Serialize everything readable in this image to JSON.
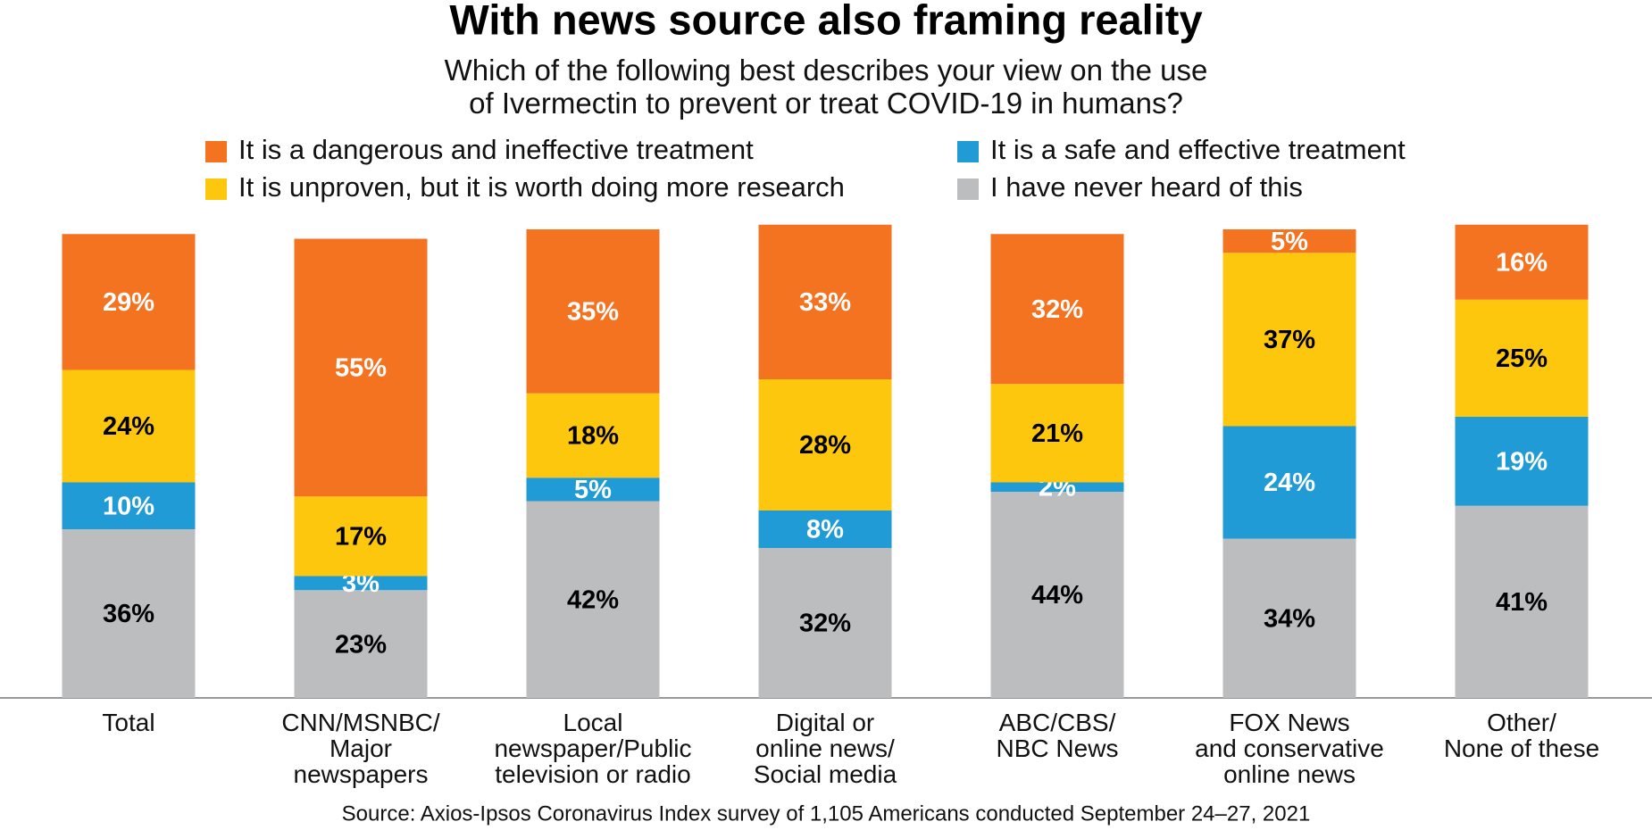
{
  "chart_data": {
    "type": "stacked_bar",
    "title": "With news source also framing reality",
    "subtitle": "Which of the following best describes your view on the use\nof Ivermectin to prevent or treat COVID-19 in humans?",
    "categories": [
      "Total",
      "CNN/MSNBC/\nMajor\nnewspapers",
      "Local\nnewspaper/Public\ntelevision or radio",
      "Digital or\nonline news/\nSocial media",
      "ABC/CBS/\nNBC News",
      "FOX News\nand conservative\nonline news",
      "Other/\nNone of these"
    ],
    "series": [
      {
        "name": "It is a dangerous and ineffective treatment",
        "color": "#f47321",
        "label_color": "#ffffff",
        "values": [
          29,
          55,
          35,
          33,
          32,
          5,
          16
        ],
        "value_labels": [
          "29%",
          "55%",
          "35%",
          "33%",
          "32%",
          "5%",
          "16%"
        ]
      },
      {
        "name": "It is unproven, but it is worth doing more research",
        "color": "#fcc70d",
        "label_color": "#000000",
        "values": [
          24,
          17,
          18,
          28,
          21,
          37,
          25
        ],
        "value_labels": [
          "24%",
          "17%",
          "18%",
          "28%",
          "21%",
          "37%",
          "25%"
        ]
      },
      {
        "name": "It is a safe and effective treatment",
        "color": "#219bd6",
        "label_color": "#ffffff",
        "values": [
          10,
          3,
          5,
          8,
          2,
          24,
          19
        ],
        "value_labels": [
          "10%",
          "3%",
          "5%",
          "8%",
          "2%",
          "24%",
          "19%"
        ]
      },
      {
        "name": "I have never heard of this",
        "color": "#bcbdbf",
        "label_color": "#000000",
        "values": [
          36,
          23,
          42,
          32,
          44,
          34,
          41
        ],
        "value_labels": [
          "36%",
          "23%",
          "42%",
          "32%",
          "44%",
          "34%",
          "41%"
        ]
      }
    ],
    "ylim": [
      0,
      100
    ],
    "source": "Source: Axios-Ipsos Coronavirus Index survey of 1,105 Americans conducted September 24–27, 2021"
  }
}
